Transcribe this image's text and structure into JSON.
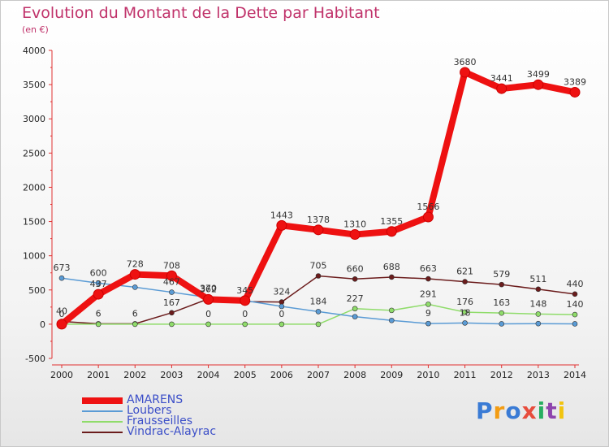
{
  "title": "Evolution du Montant de la Dette par Habitant",
  "subtitle": "(en €)",
  "logo": {
    "text": "Proxiti",
    "letters": [
      "P",
      "r",
      "o",
      "x",
      "i",
      "t",
      "i"
    ],
    "colors": [
      "#3a7bd5",
      "#f39c12",
      "#3a7bd5",
      "#e74c3c",
      "#27ae60",
      "#8e44ad",
      "#f1c40f"
    ]
  },
  "chart_data": {
    "type": "line",
    "title": "Evolution du Montant de la Dette par Habitant",
    "ylabel": "(en €)",
    "x": [
      "2000",
      "2001",
      "2002",
      "2003",
      "2004",
      "2005",
      "2006",
      "2007",
      "2008",
      "2009",
      "2010",
      "2011",
      "2012",
      "2013",
      "2014"
    ],
    "ylim": [
      -500,
      4000
    ],
    "yticks": [
      -500,
      0,
      500,
      1000,
      1500,
      2000,
      2500,
      3000,
      3500,
      4000
    ],
    "grid": false,
    "legend_position": "bottom-left",
    "series": [
      {
        "name": "AMARENS",
        "color": "#ee1111",
        "width": 8,
        "values": [
          0,
          437,
          728,
          708,
          362,
          345,
          1443,
          1378,
          1310,
          1355,
          1566,
          3680,
          3441,
          3499,
          3389
        ],
        "labels": [
          "0",
          "437",
          "728",
          "708",
          "362",
          "345",
          "1443",
          "1378",
          "1310",
          "1355",
          "1566",
          "3680",
          "3441",
          "3499",
          "3389"
        ]
      },
      {
        "name": "Loubers",
        "color": "#5a9bd5",
        "width": 1.5,
        "values": [
          673,
          600,
          540,
          467,
          390,
          345,
          260,
          184,
          110,
          55,
          9,
          18,
          5,
          8,
          5
        ],
        "labels": [
          "673",
          "600",
          "",
          "467",
          "",
          "",
          "",
          "184",
          "",
          "",
          "9",
          "18",
          "",
          "",
          ""
        ]
      },
      {
        "name": "Frausseilles",
        "color": "#8fdc6a",
        "width": 1.5,
        "values": [
          0,
          0,
          0,
          0,
          0,
          0,
          0,
          0,
          227,
          202,
          291,
          176,
          163,
          148,
          140
        ],
        "labels": [
          "",
          "",
          "",
          "",
          "0",
          "0",
          "0",
          "",
          "227",
          "",
          "291",
          "176",
          "163",
          "148",
          "140"
        ]
      },
      {
        "name": "Vindrac-Alayrac",
        "color": "#6b1c1c",
        "width": 1.5,
        "values": [
          40,
          6,
          6,
          167,
          370,
          330,
          324,
          705,
          660,
          688,
          663,
          621,
          579,
          511,
          440
        ],
        "labels": [
          "40",
          "6",
          "6",
          "167",
          "370",
          "",
          "324",
          "705",
          "660",
          "688",
          "663",
          "621",
          "579",
          "511",
          "440"
        ]
      }
    ]
  }
}
